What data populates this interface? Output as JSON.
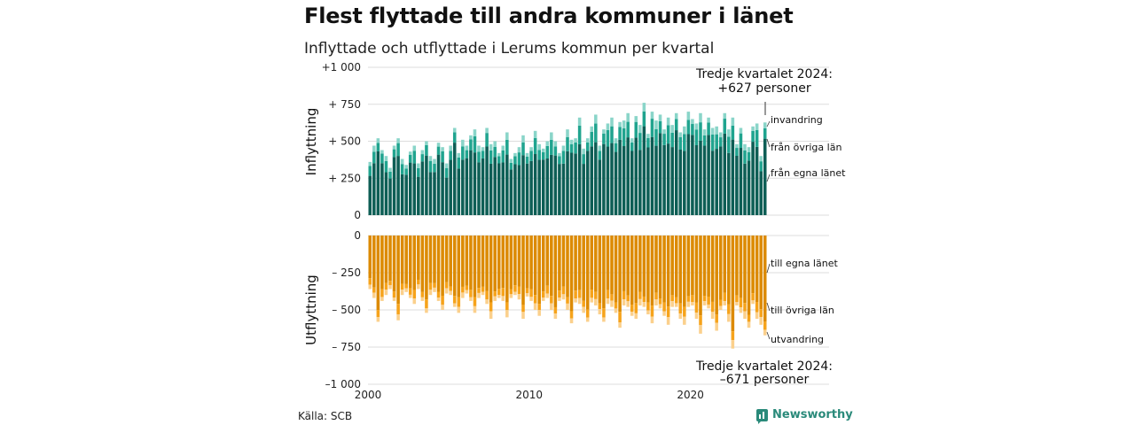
{
  "title": "Flest flyttade till andra kommuner i länet",
  "subtitle": "Inflyttade och utflyttade i Lerums kommun per kvartal",
  "source": "Källa: SCB",
  "brand": "Newsworthy",
  "colors": {
    "in_local": "#0d5e55",
    "in_other": "#20a48f",
    "in_abroad": "#8ad5c9",
    "out_local": "#dc8a00",
    "out_other": "#f6a31b",
    "out_abroad": "#fbd08c",
    "grid": "#dddddd"
  },
  "chart_data": [
    {
      "type": "bar",
      "stacked": true,
      "panel": "top",
      "ylabel": "Inflyttning",
      "ylim": [
        0,
        1000
      ],
      "yticks": [
        0,
        250,
        500,
        750,
        1000
      ],
      "ytick_labels": [
        "0",
        "+ 250",
        "+ 500",
        "+ 750",
        "+1 000"
      ],
      "x_start": "2000 Q1",
      "x_end": "2024 Q3",
      "series_labels": [
        "från egna länet",
        "från övriga län",
        "invandring"
      ],
      "annotation": {
        "line1": "Tredje kvartalet 2024:",
        "line2": "+627 personer"
      },
      "totals": [
        360,
        470,
        520,
        440,
        400,
        320,
        470,
        520,
        380,
        340,
        430,
        470,
        350,
        440,
        500,
        400,
        380,
        490,
        460,
        350,
        470,
        590,
        420,
        510,
        470,
        540,
        580,
        470,
        460,
        590,
        480,
        500,
        420,
        470,
        560,
        380,
        420,
        460,
        540,
        420,
        460,
        570,
        480,
        450,
        500,
        560,
        500,
        420,
        470,
        580,
        510,
        520,
        660,
        450,
        520,
        600,
        680,
        470,
        580,
        620,
        660,
        520,
        630,
        640,
        690,
        520,
        670,
        610,
        760,
        550,
        700,
        640,
        680,
        580,
        660,
        610,
        690,
        560,
        600,
        700,
        650,
        620,
        690,
        580,
        660,
        590,
        600,
        560,
        690,
        580,
        660,
        480,
        590,
        480,
        460,
        600,
        620,
        400,
        627
      ],
      "from_other_share": 0.15,
      "immigration_share": 0.07
    },
    {
      "type": "bar",
      "stacked": true,
      "panel": "bottom",
      "ylabel": "Utflyttning",
      "ylim": [
        -1000,
        0
      ],
      "yticks": [
        0,
        -250,
        -500,
        -750,
        -1000
      ],
      "ytick_labels": [
        "0",
        "– 250",
        "– 500",
        "– 750",
        "–1 000"
      ],
      "xticks": [
        2000,
        2010,
        2020
      ],
      "x_start": "2000 Q1",
      "x_end": "2024 Q3",
      "series_labels": [
        "till egna länet",
        "till övriga län",
        "utvandring"
      ],
      "annotation": {
        "line1": "Tredje kvartalet 2024:",
        "line2": "–671 personer"
      },
      "totals": [
        -360,
        -420,
        -580,
        -440,
        -400,
        -360,
        -440,
        -570,
        -400,
        -380,
        -420,
        -460,
        -360,
        -440,
        -520,
        -400,
        -380,
        -440,
        -500,
        -390,
        -400,
        -480,
        -520,
        -420,
        -390,
        -440,
        -520,
        -420,
        -400,
        -460,
        -560,
        -440,
        -420,
        -440,
        -550,
        -420,
        -400,
        -430,
        -560,
        -410,
        -440,
        -500,
        -540,
        -440,
        -420,
        -500,
        -560,
        -440,
        -430,
        -500,
        -590,
        -450,
        -460,
        -520,
        -580,
        -450,
        -470,
        -530,
        -580,
        -460,
        -480,
        -520,
        -620,
        -470,
        -480,
        -540,
        -560,
        -470,
        -480,
        -530,
        -590,
        -470,
        -490,
        -540,
        -600,
        -480,
        -480,
        -560,
        -600,
        -480,
        -470,
        -560,
        -660,
        -470,
        -490,
        -560,
        -640,
        -500,
        -470,
        -580,
        -760,
        -470,
        -520,
        -560,
        -620,
        -460,
        -560,
        -600,
        -671
      ],
      "to_other_share": 0.1,
      "emigration_share": 0.07
    }
  ]
}
